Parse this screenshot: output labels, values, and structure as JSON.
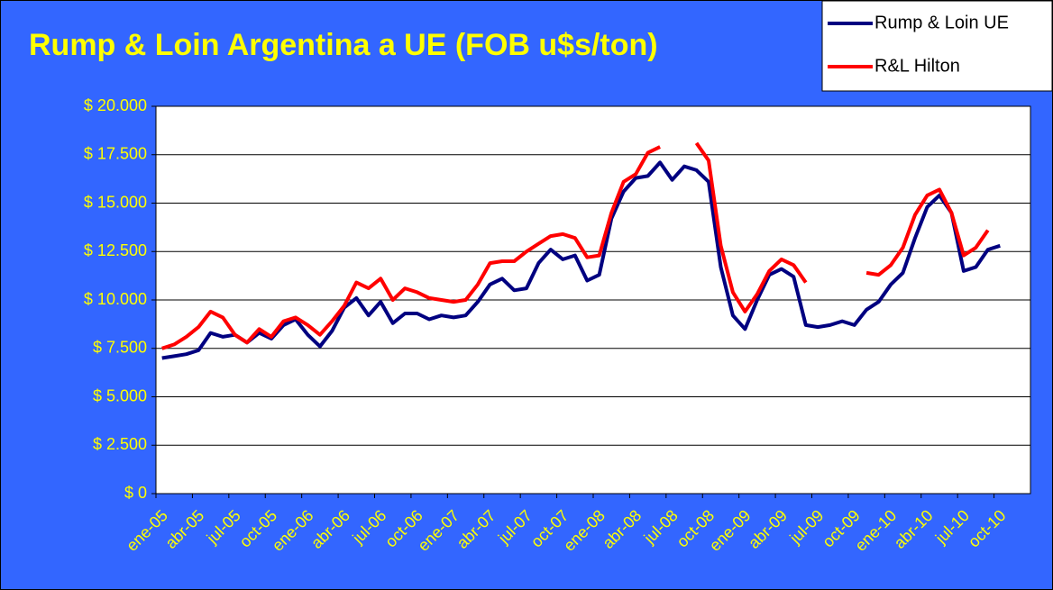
{
  "chart_data": {
    "type": "line",
    "title": "Rump & Loin Argentina a UE (FOB u$s/ton)",
    "categories": [
      "ene-05",
      null,
      null,
      "abr-05",
      null,
      null,
      "jul-05",
      null,
      null,
      "oct-05",
      null,
      null,
      "ene-06",
      null,
      null,
      "abr-06",
      null,
      null,
      "jul-06",
      null,
      null,
      "oct-06",
      null,
      null,
      "ene-07",
      null,
      null,
      "abr-07",
      null,
      null,
      "jul-07",
      null,
      null,
      "oct-07",
      null,
      null,
      "ene-08",
      null,
      null,
      "abr-08",
      null,
      null,
      "jul-08",
      null,
      null,
      "oct-08",
      null,
      null,
      "ene-09",
      null,
      null,
      "abr-09",
      null,
      null,
      "jul-09",
      null,
      null,
      "oct-09",
      null,
      null,
      "ene-10",
      null,
      null,
      "abr-10",
      null,
      null,
      "jul-10",
      null,
      null,
      "oct-10",
      null,
      null
    ],
    "series": [
      {
        "name": "Rump & Loin UE",
        "color": "#000080",
        "values": [
          7000,
          7100,
          7200,
          7400,
          8300,
          8100,
          8200,
          7800,
          8300,
          8000,
          8700,
          9000,
          8200,
          7600,
          8400,
          9600,
          10100,
          9200,
          9900,
          8800,
          9300,
          9300,
          9000,
          9200,
          9100,
          9200,
          9900,
          10800,
          11100,
          10500,
          10600,
          11900,
          12600,
          12100,
          12300,
          11000,
          11300,
          14200,
          15600,
          16300,
          16400,
          17100,
          16200,
          16900,
          16700,
          16100,
          11700,
          9200,
          8500,
          10000,
          11300,
          11600,
          11200,
          8700,
          8600,
          8700,
          8900,
          8700,
          9500,
          9900,
          10800,
          11400,
          13200,
          14800,
          15400,
          14500,
          11500,
          11700,
          12600,
          12800,
          null,
          null
        ]
      },
      {
        "name": "R&L Hilton",
        "color": "#ff0000",
        "values": [
          7500,
          7700,
          8100,
          8600,
          9400,
          9100,
          8200,
          7800,
          8500,
          8100,
          8900,
          9100,
          8700,
          8200,
          8900,
          9700,
          10900,
          10600,
          11100,
          10000,
          10600,
          10400,
          10100,
          10000,
          9900,
          10000,
          10800,
          11900,
          12000,
          12000,
          12500,
          12900,
          13300,
          13400,
          13200,
          12200,
          12300,
          14500,
          16100,
          16500,
          17600,
          17900,
          null,
          null,
          18100,
          17200,
          12800,
          10400,
          9400,
          10300,
          11500,
          12100,
          11800,
          10900,
          null,
          null,
          null,
          null,
          11400,
          11300,
          11800,
          12700,
          14400,
          15400,
          15700,
          14500,
          12300,
          12700,
          13600,
          null,
          null,
          null
        ]
      }
    ],
    "ylim": [
      0,
      20000
    ],
    "yticks": [
      {
        "value": 0,
        "label": "$ 0"
      },
      {
        "value": 2500,
        "label": "$ 2.500"
      },
      {
        "value": 5000,
        "label": "$ 5.000"
      },
      {
        "value": 7500,
        "label": "$ 7.500"
      },
      {
        "value": 10000,
        "label": "$ 10.000"
      },
      {
        "value": 12500,
        "label": "$ 12.500"
      },
      {
        "value": 15000,
        "label": "$ 15.000"
      },
      {
        "value": 17500,
        "label": "$ 17.500"
      },
      {
        "value": 20000,
        "label": "$ 20.000"
      }
    ],
    "grid": true,
    "legend": "top-right"
  }
}
